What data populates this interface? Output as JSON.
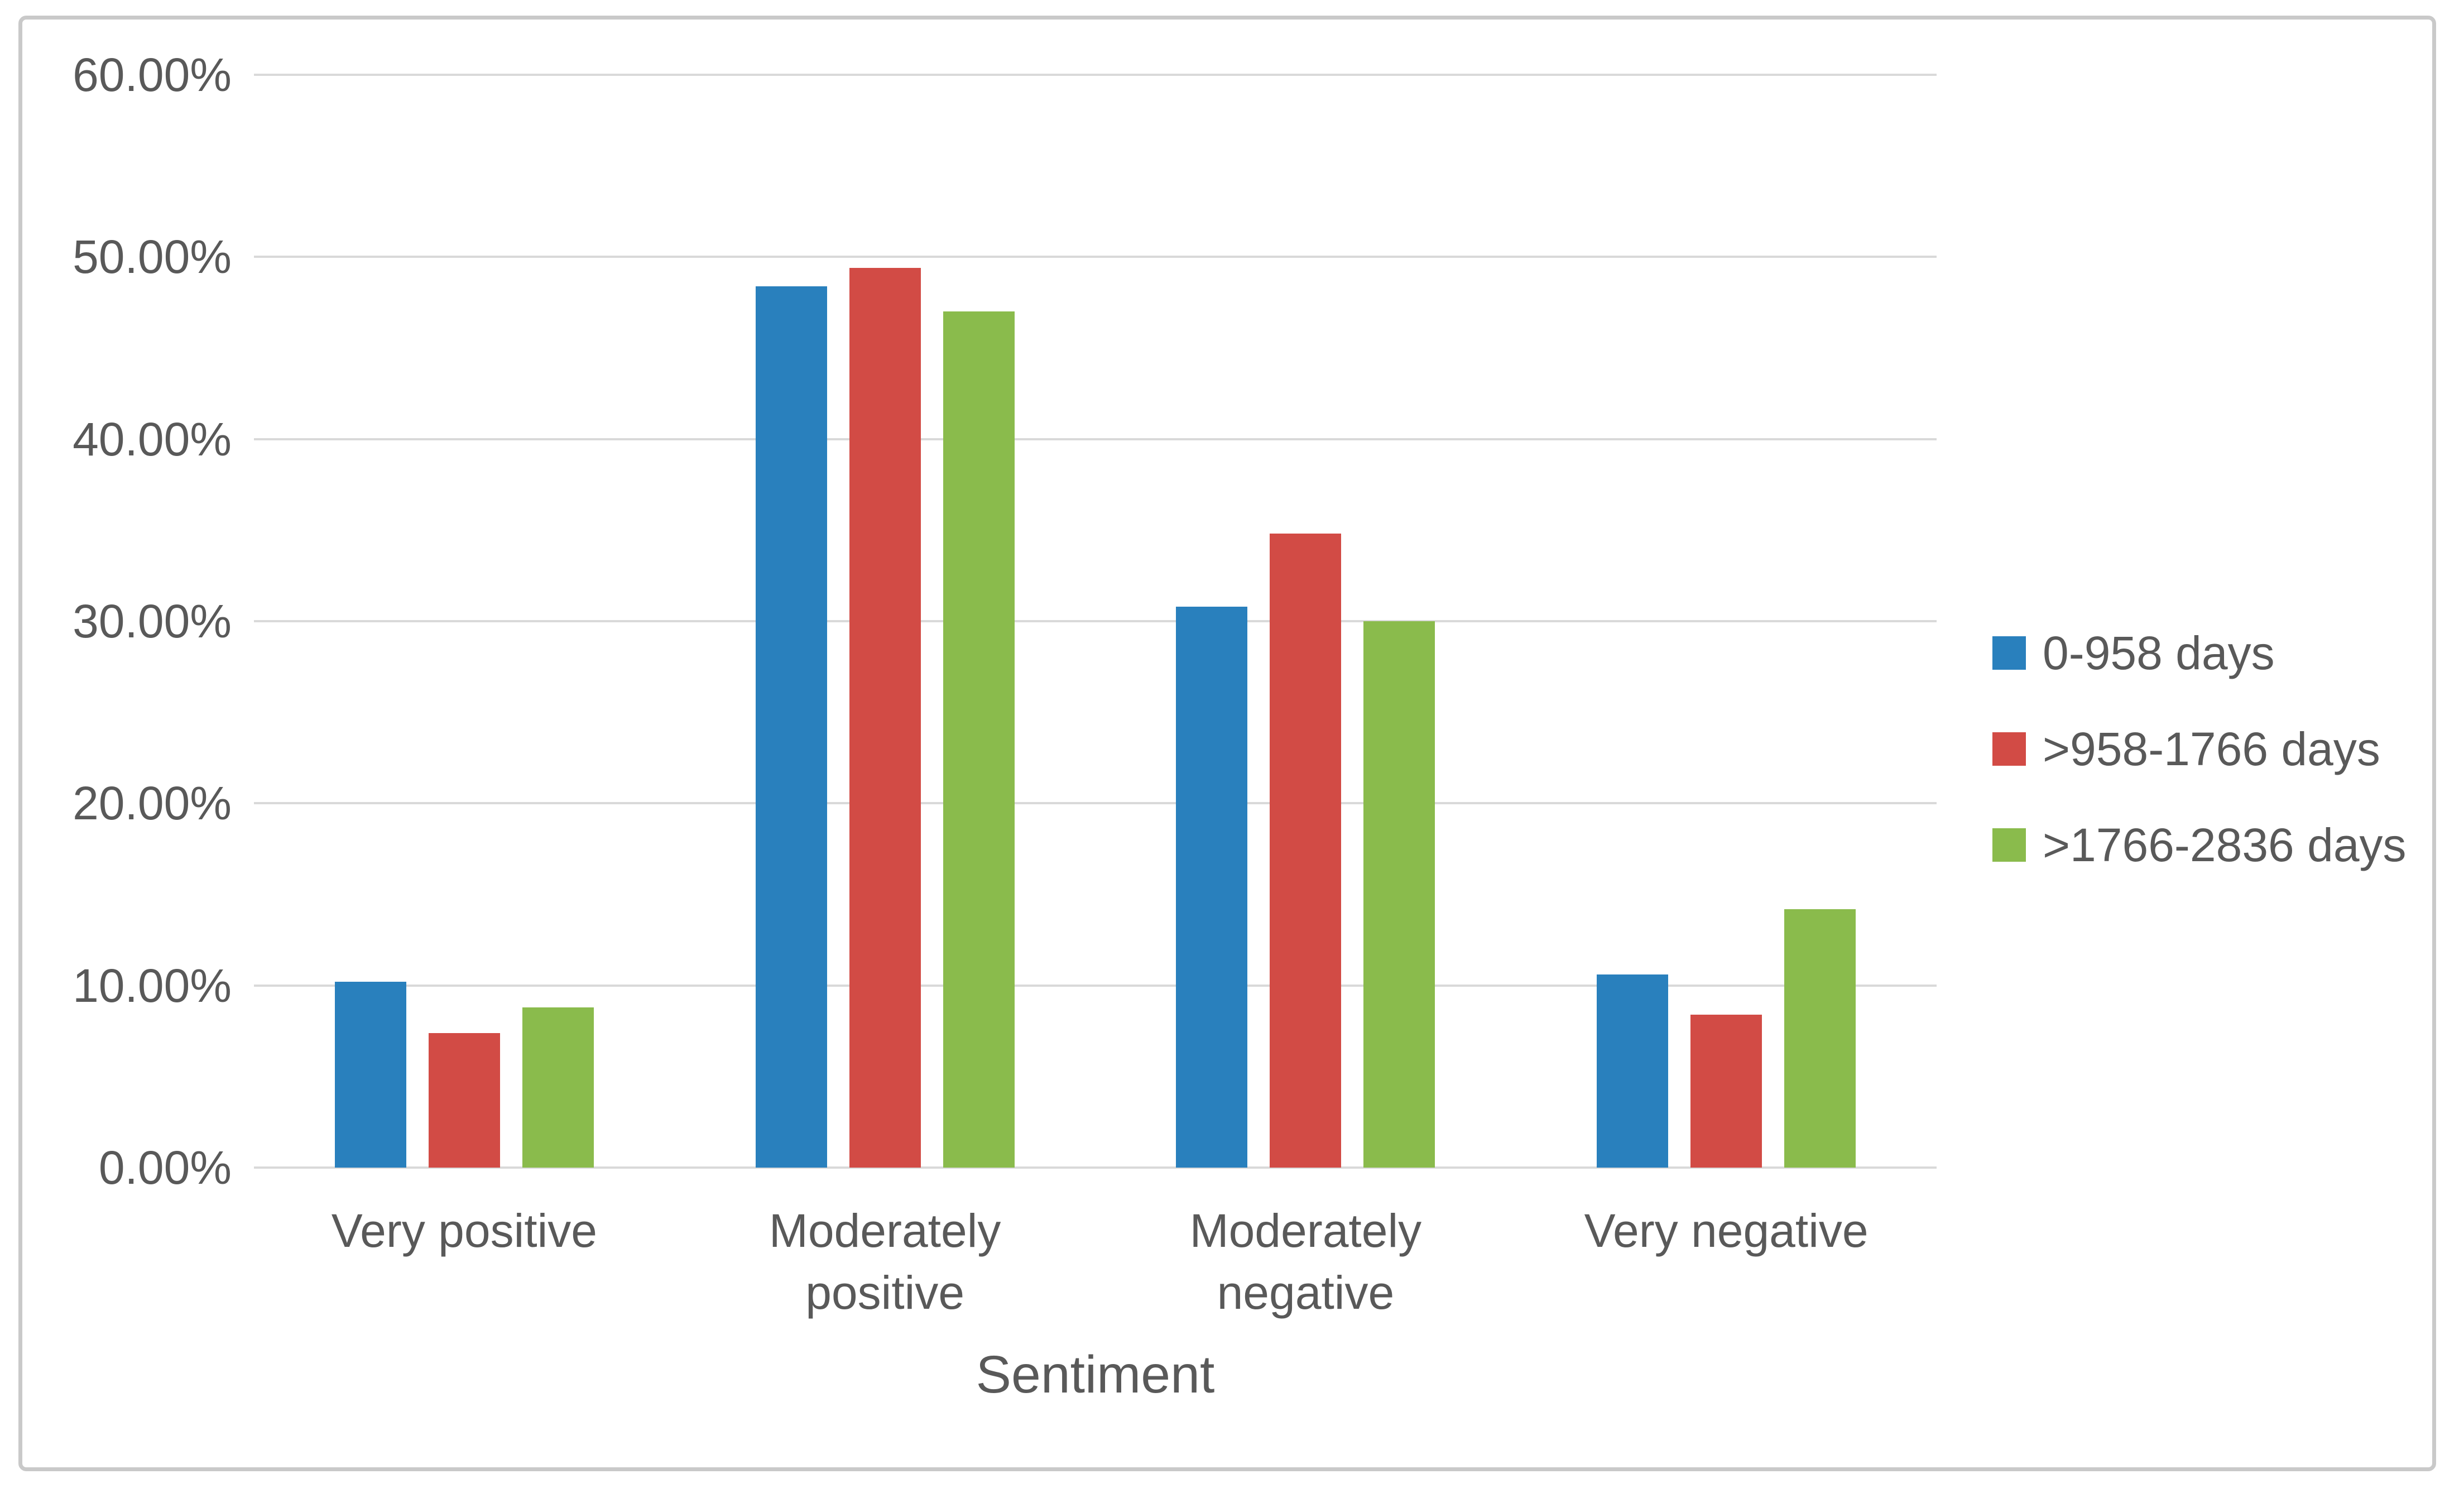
{
  "chart_data": {
    "type": "bar",
    "categories": [
      "Very positive",
      "Moderately\npositive",
      "Moderately\nnegative",
      "Very negative"
    ],
    "series": [
      {
        "name": "0-958 days",
        "color": "#2980BD",
        "values": [
          10.2,
          48.4,
          30.8,
          10.6
        ]
      },
      {
        "name": ">958-1766 days",
        "color": "#D24B45",
        "values": [
          7.4,
          49.4,
          34.8,
          8.4
        ]
      },
      {
        "name": ">1766-2836 days",
        "color": "#8ABB4C",
        "values": [
          8.8,
          47.0,
          30.0,
          14.2
        ]
      }
    ],
    "title": "",
    "xlabel": "Sentiment",
    "ylabel": "",
    "ylim": [
      0,
      60
    ],
    "ytick_step": 10,
    "yticks": [
      "0.00%",
      "10.00%",
      "20.00%",
      "30.00%",
      "40.00%",
      "50.00%",
      "60.00%"
    ],
    "grid": true,
    "legend_position": "right"
  },
  "styles": {
    "background": "#FFFFFF",
    "text_color": "#595959",
    "gridline_color": "#D9D9D9",
    "figure_border_color": "#C9C9C9"
  }
}
